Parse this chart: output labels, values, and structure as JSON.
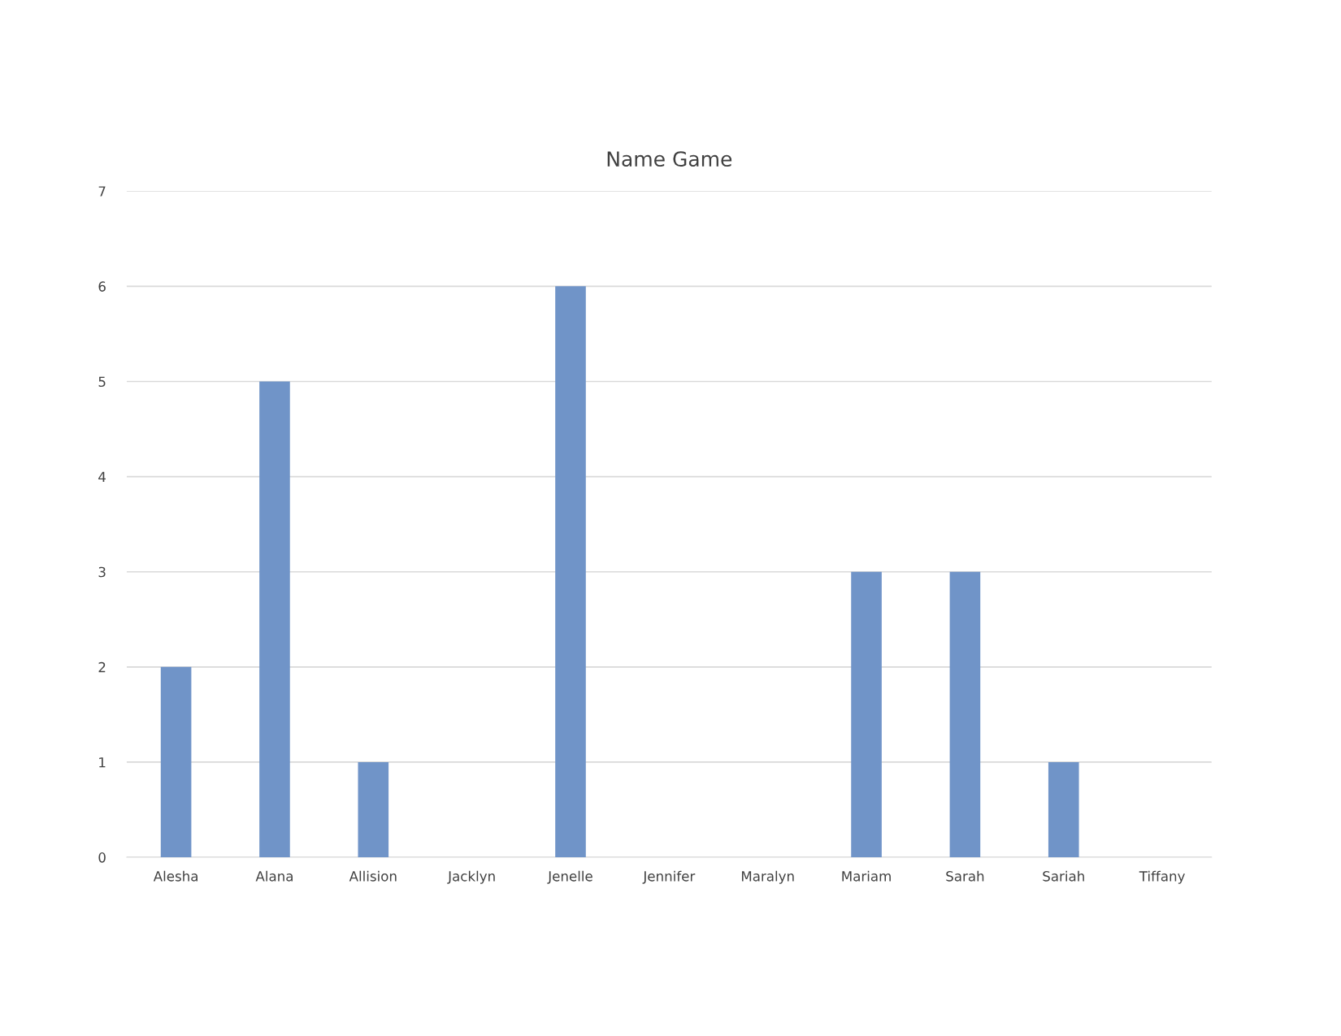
{
  "chart_data": {
    "type": "bar",
    "title": "Name Game",
    "categories": [
      "Alesha",
      "Alana",
      "Allision",
      "Jacklyn",
      "Jenelle",
      "Jennifer",
      "Maralyn",
      "Mariam",
      "Sarah",
      "Sariah",
      "Tiffany"
    ],
    "values": [
      2,
      5,
      1,
      0,
      6,
      0,
      0,
      3,
      3,
      1,
      0
    ],
    "color": "#7094c8",
    "ylim": [
      0,
      7
    ],
    "yticks": [
      0,
      1,
      2,
      3,
      4,
      5,
      6,
      7
    ],
    "grid": "y"
  }
}
